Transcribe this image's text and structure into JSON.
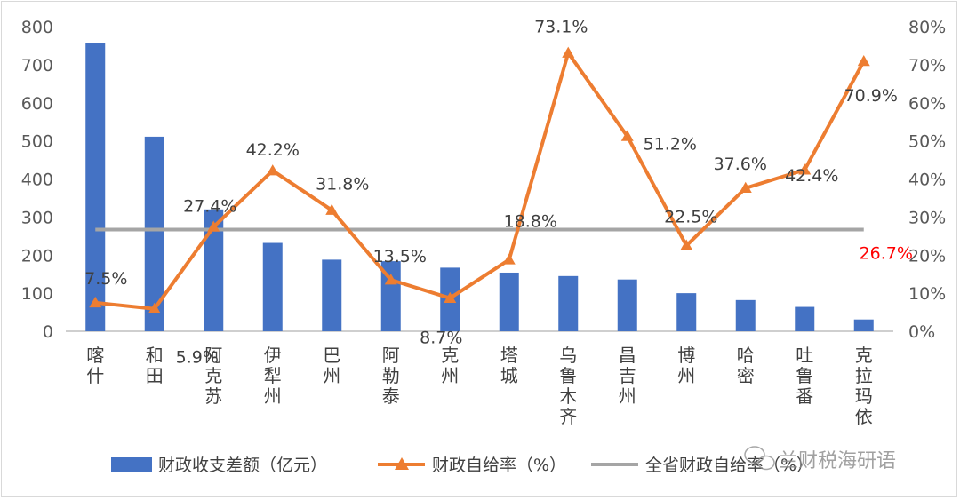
{
  "chart_data": {
    "type": "bar+line",
    "categories": [
      [
        "喀",
        "什"
      ],
      [
        "和",
        "田"
      ],
      [
        "阿",
        "克",
        "苏"
      ],
      [
        "伊",
        "犁",
        "州"
      ],
      [
        "巴",
        "州"
      ],
      [
        "阿",
        "勒",
        "泰"
      ],
      [
        "克",
        "州"
      ],
      [
        "塔",
        "城"
      ],
      [
        "乌",
        "鲁",
        "木",
        "齐"
      ],
      [
        "昌",
        "吉",
        "州"
      ],
      [
        "博",
        "州"
      ],
      [
        "哈",
        "密"
      ],
      [
        "吐",
        "鲁",
        "番"
      ],
      [
        "克",
        "拉",
        "玛",
        "依"
      ]
    ],
    "series": [
      {
        "name": "财政收支差额（亿元）",
        "type": "bar",
        "axis": "left",
        "color": "#4472c4",
        "values": [
          758,
          511,
          320,
          232,
          188,
          184,
          167,
          154,
          145,
          136,
          100,
          82,
          64,
          31
        ]
      },
      {
        "name": "财政自给率（%）",
        "type": "line",
        "axis": "right",
        "color": "#ed7d31",
        "values": [
          7.5,
          5.9,
          27.4,
          42.2,
          31.8,
          13.5,
          8.7,
          18.8,
          73.1,
          51.2,
          22.5,
          37.6,
          42.4,
          70.9
        ],
        "labels": [
          "7.5%",
          "5.9%",
          "27.4%",
          "42.2%",
          "31.8%",
          "13.5%",
          "8.7%",
          "18.8%",
          "73.1%",
          "51.2%",
          "22.5%",
          "37.6%",
          "42.4%",
          "70.9%"
        ]
      },
      {
        "name": "全省财政自给率（%）",
        "type": "reference-line",
        "axis": "right",
        "color": "#a5a5a5",
        "value": 26.7,
        "label": "26.7%",
        "label_color": "#ff0000"
      }
    ],
    "y_left": {
      "min": 0,
      "max": 800,
      "ticks": [
        "0",
        "100",
        "200",
        "300",
        "400",
        "500",
        "600",
        "700",
        "800"
      ]
    },
    "y_right": {
      "min": 0,
      "max": 80,
      "ticks": [
        "0%",
        "10%",
        "20%",
        "30%",
        "40%",
        "50%",
        "60%",
        "70%",
        "80%"
      ]
    },
    "grid": false,
    "legend_position": "bottom"
  },
  "watermark": {
    "text": "兰财税海研语",
    "icon": "wechat-icon"
  }
}
